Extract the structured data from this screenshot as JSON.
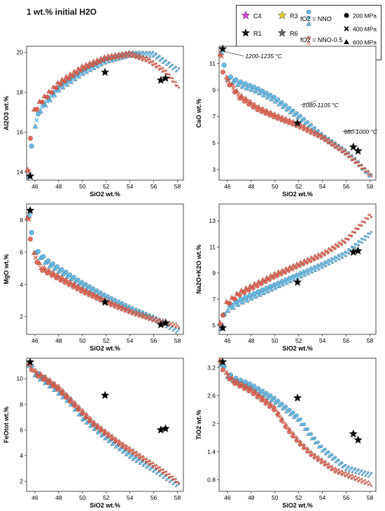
{
  "page_title": "1 wt.% initial H2O",
  "legend": {
    "samples": [
      {
        "label": "C4",
        "color": "#e040e0"
      },
      {
        "label": "R3",
        "color": "#f0d020"
      },
      {
        "label": "R1",
        "color": "#000000"
      },
      {
        "label": "R6",
        "color": "#666666"
      }
    ],
    "buffer_nno": "fO2 = NNO",
    "buffer_nno05": "fO2 = NNO-0.5",
    "pressures": [
      {
        "label": "200 MPa",
        "marker": "circle"
      },
      {
        "label": "400 MPa",
        "marker": "cross"
      },
      {
        "label": "600 MPa",
        "marker": "triangle"
      }
    ]
  },
  "colors": {
    "nno": "#5bb8e8",
    "nno05": "#e05540",
    "outline": "#555555"
  },
  "chart_data": [
    {
      "type": "scatter",
      "xlabel": "SiO2 wt.%",
      "ylabel": "Al2O3 wt.%",
      "xlim": [
        45.3,
        58.5
      ],
      "ylim": [
        13.6,
        20.3
      ],
      "xticks": [
        46,
        48,
        50,
        52,
        54,
        56,
        58
      ],
      "yticks": [
        14,
        16,
        18,
        20
      ],
      "trend_nno": [
        [
          45.6,
          13.9
        ],
        [
          45.7,
          15.0
        ],
        [
          45.8,
          16.0
        ],
        [
          46.5,
          17.2
        ],
        [
          48,
          18.2
        ],
        [
          50,
          19.0
        ],
        [
          52,
          19.6
        ],
        [
          54,
          19.9
        ],
        [
          56,
          19.9
        ],
        [
          58,
          19.1
        ]
      ],
      "trend_nno05": [
        [
          45.5,
          14.0
        ],
        [
          45.6,
          15.5
        ],
        [
          45.7,
          16.8
        ],
        [
          46.5,
          17.5
        ],
        [
          48,
          18.4
        ],
        [
          50,
          19.2
        ],
        [
          52,
          19.7
        ],
        [
          54,
          19.9
        ],
        [
          55.5,
          19.6
        ],
        [
          57,
          19.0
        ],
        [
          58,
          18.3
        ]
      ],
      "samples": [
        {
          "name": "C4",
          "x": 45.6,
          "y": 13.8
        },
        {
          "name": "R3",
          "x": 51.9,
          "y": 19.0
        },
        {
          "name": "R1",
          "x": 57.0,
          "y": 18.7
        },
        {
          "name": "R6",
          "x": 56.6,
          "y": 18.6
        }
      ],
      "annotations": []
    },
    {
      "type": "scatter",
      "xlabel": "SiO2 wt.%",
      "ylabel": "CaO wt.%",
      "xlim": [
        45.3,
        58.5
      ],
      "ylim": [
        2.2,
        12.3
      ],
      "xticks": [
        46,
        48,
        50,
        52,
        54,
        56,
        58
      ],
      "yticks": [
        3,
        5,
        7,
        9,
        11
      ],
      "trend_nno": [
        [
          45.6,
          12.0
        ],
        [
          45.7,
          10.8
        ],
        [
          45.9,
          10.0
        ],
        [
          47,
          9.5
        ],
        [
          48.5,
          9.0
        ],
        [
          50,
          8.3
        ],
        [
          52,
          7.0
        ],
        [
          54,
          5.5
        ],
        [
          56,
          4.3
        ],
        [
          57,
          3.5
        ],
        [
          58,
          2.5
        ]
      ],
      "trend_nno05": [
        [
          45.5,
          11.5
        ],
        [
          45.6,
          10.5
        ],
        [
          45.9,
          9.8
        ],
        [
          47,
          8.5
        ],
        [
          48.5,
          7.6
        ],
        [
          50,
          7.0
        ],
        [
          52,
          6.3
        ],
        [
          54,
          5.4
        ],
        [
          56,
          4.2
        ],
        [
          58,
          2.6
        ]
      ],
      "samples": [
        {
          "name": "C4",
          "x": 45.6,
          "y": 12.1
        },
        {
          "name": "R3",
          "x": 51.9,
          "y": 6.5
        },
        {
          "name": "R1",
          "x": 57.0,
          "y": 4.4
        },
        {
          "name": "R6",
          "x": 56.6,
          "y": 4.7
        }
      ],
      "annotations": [
        {
          "text": "1200-1235 °C",
          "x": 47.5,
          "y": 11.4,
          "ax": 45.8,
          "ay": 11.9
        },
        {
          "text": "1080-1105 °C",
          "x": 52.3,
          "y": 7.7,
          "ax": 53.5,
          "ay": 8.2
        },
        {
          "text": "980-1000 °C",
          "x": 55.8,
          "y": 5.7,
          "ax": 57.0,
          "ay": 6.0
        }
      ]
    },
    {
      "type": "scatter",
      "xlabel": "SiO2 wt.%",
      "ylabel": "MgO wt.%",
      "xlim": [
        45.3,
        58.5
      ],
      "ylim": [
        0.9,
        9.0
      ],
      "xticks": [
        46,
        48,
        50,
        52,
        54,
        56,
        58
      ],
      "yticks": [
        2,
        4,
        6,
        8
      ],
      "trend_nno": [
        [
          45.6,
          8.4
        ],
        [
          45.7,
          7.2
        ],
        [
          45.9,
          6.2
        ],
        [
          47,
          5.4
        ],
        [
          48.5,
          4.7
        ],
        [
          50,
          4.0
        ],
        [
          52,
          3.2
        ],
        [
          54,
          2.5
        ],
        [
          56,
          1.9
        ],
        [
          58,
          1.1
        ]
      ],
      "trend_nno05": [
        [
          45.5,
          8.0
        ],
        [
          45.6,
          7.0
        ],
        [
          45.8,
          6.0
        ],
        [
          46.5,
          5.0
        ],
        [
          48,
          4.4
        ],
        [
          50,
          3.6
        ],
        [
          52,
          2.9
        ],
        [
          54,
          2.3
        ],
        [
          56,
          1.8
        ],
        [
          58,
          1.4
        ]
      ],
      "samples": [
        {
          "name": "C4",
          "x": 45.6,
          "y": 8.6
        },
        {
          "name": "R3",
          "x": 51.9,
          "y": 2.9
        },
        {
          "name": "R1",
          "x": 57.0,
          "y": 1.6
        },
        {
          "name": "R6",
          "x": 56.6,
          "y": 1.5
        }
      ],
      "annotations": []
    },
    {
      "type": "scatter",
      "xlabel": "SiO2 wt.%",
      "ylabel": "Na2O+K2O wt.%",
      "xlim": [
        45.3,
        58.5
      ],
      "ylim": [
        4.3,
        14.3
      ],
      "xticks": [
        46,
        48,
        50,
        52,
        54,
        56,
        58
      ],
      "yticks": [
        5,
        7,
        9,
        11,
        13
      ],
      "trend_nno": [
        [
          45.6,
          4.9
        ],
        [
          45.7,
          5.6
        ],
        [
          45.9,
          6.2
        ],
        [
          47,
          6.8
        ],
        [
          48.5,
          7.4
        ],
        [
          50,
          8.0
        ],
        [
          52,
          8.8
        ],
        [
          54,
          9.6
        ],
        [
          56,
          10.5
        ],
        [
          58,
          12.0
        ]
      ],
      "trend_nno05": [
        [
          45.5,
          5.0
        ],
        [
          45.6,
          5.8
        ],
        [
          45.8,
          6.5
        ],
        [
          47,
          7.4
        ],
        [
          48.5,
          8.1
        ],
        [
          50,
          8.8
        ],
        [
          52,
          9.6
        ],
        [
          54,
          10.4
        ],
        [
          56,
          11.5
        ],
        [
          58,
          13.4
        ]
      ],
      "samples": [
        {
          "name": "C4",
          "x": 45.6,
          "y": 4.8
        },
        {
          "name": "R3",
          "x": 51.9,
          "y": 8.3
        },
        {
          "name": "R1",
          "x": 57.0,
          "y": 10.7
        },
        {
          "name": "R6",
          "x": 56.6,
          "y": 10.6
        }
      ],
      "annotations": []
    },
    {
      "type": "scatter",
      "xlabel": "SiO2 wt.%",
      "ylabel": "FeOtot wt.%",
      "xlim": [
        45.3,
        58.5
      ],
      "ylim": [
        1.2,
        11.6
      ],
      "xticks": [
        46,
        48,
        50,
        52,
        54,
        56,
        58
      ],
      "yticks": [
        2,
        4,
        6,
        8,
        10
      ],
      "trend_nno": [
        [
          45.6,
          11.2
        ],
        [
          45.8,
          10.6
        ],
        [
          46.5,
          10.1
        ],
        [
          47.5,
          9.4
        ],
        [
          49,
          8.2
        ],
        [
          50,
          7.0
        ],
        [
          52,
          5.4
        ],
        [
          54,
          4.0
        ],
        [
          56,
          2.9
        ],
        [
          58,
          1.7
        ]
      ],
      "trend_nno05": [
        [
          45.6,
          11.0
        ],
        [
          45.9,
          10.5
        ],
        [
          46.8,
          10.0
        ],
        [
          48,
          9.2
        ],
        [
          49.5,
          7.8
        ],
        [
          51,
          6.4
        ],
        [
          53,
          5.0
        ],
        [
          55,
          3.8
        ],
        [
          57,
          2.6
        ],
        [
          58,
          1.9
        ]
      ],
      "samples": [
        {
          "name": "C4",
          "x": 45.6,
          "y": 11.3
        },
        {
          "name": "R3",
          "x": 51.9,
          "y": 8.7
        },
        {
          "name": "R1",
          "x": 57.0,
          "y": 6.1
        },
        {
          "name": "R6",
          "x": 56.6,
          "y": 6.0
        }
      ],
      "annotations": []
    },
    {
      "type": "scatter",
      "xlabel": "SiO2 wt.%",
      "ylabel": "TiO2 wt.%",
      "xlim": [
        45.3,
        58.5
      ],
      "ylim": [
        0.55,
        3.4
      ],
      "xticks": [
        46,
        48,
        50,
        52,
        54,
        56,
        58
      ],
      "yticks": [
        0.8,
        1.4,
        2.0,
        2.6,
        3.2
      ],
      "trend_nno": [
        [
          45.6,
          3.3
        ],
        [
          45.8,
          3.1
        ],
        [
          46.5,
          2.95
        ],
        [
          48,
          2.8
        ],
        [
          50,
          2.5
        ],
        [
          52,
          2.1
        ],
        [
          53,
          1.75
        ],
        [
          54,
          1.45
        ],
        [
          56,
          1.05
        ],
        [
          58,
          0.9
        ]
      ],
      "trend_nno05": [
        [
          45.5,
          3.3
        ],
        [
          45.7,
          3.1
        ],
        [
          46.5,
          2.9
        ],
        [
          48,
          2.7
        ],
        [
          50,
          2.3
        ],
        [
          51,
          1.9
        ],
        [
          52,
          1.6
        ],
        [
          53,
          1.35
        ],
        [
          55,
          1.0
        ],
        [
          58,
          0.7
        ]
      ],
      "samples": [
        {
          "name": "C4",
          "x": 45.6,
          "y": 3.32
        },
        {
          "name": "R3",
          "x": 51.9,
          "y": 2.55
        },
        {
          "name": "R1",
          "x": 57.0,
          "y": 1.65
        },
        {
          "name": "R6",
          "x": 56.6,
          "y": 1.78
        }
      ],
      "annotations": []
    }
  ]
}
